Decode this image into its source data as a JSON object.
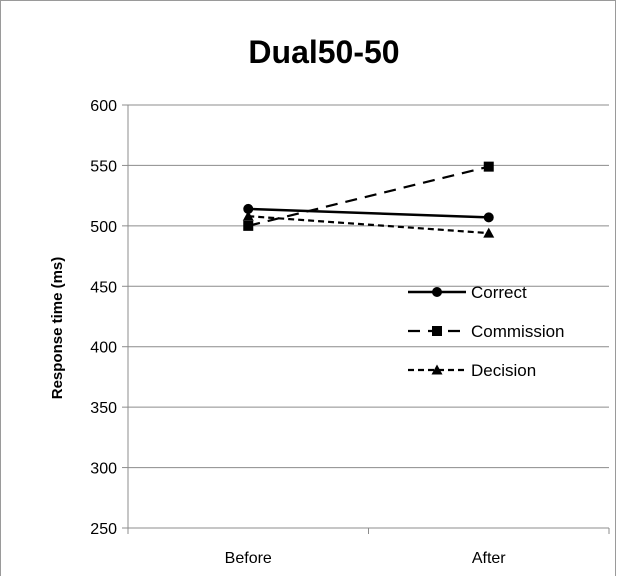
{
  "chart_data": {
    "type": "line",
    "title": "Dual50-50",
    "xlabel": "",
    "ylabel": "Response time (ms)",
    "categories": [
      "Before",
      "After"
    ],
    "ylim": [
      250,
      600
    ],
    "yticks": [
      250,
      300,
      350,
      400,
      450,
      500,
      550,
      600
    ],
    "grid": true,
    "legend_position": "right",
    "series": [
      {
        "name": "Correct",
        "values": [
          514,
          507
        ],
        "line_style": "solid",
        "marker": "circle",
        "color": "#000000"
      },
      {
        "name": "Commission",
        "values": [
          500,
          549
        ],
        "line_style": "long-dash",
        "marker": "square",
        "color": "#000000"
      },
      {
        "name": "Decision",
        "values": [
          508,
          494
        ],
        "line_style": "short-dash",
        "marker": "triangle",
        "color": "#000000"
      }
    ]
  }
}
